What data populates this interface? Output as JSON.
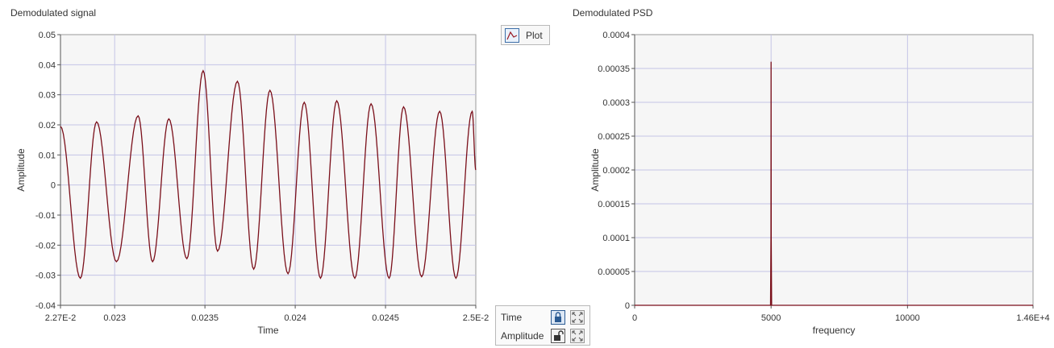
{
  "left_graph": {
    "title": "Demodulated signal",
    "chart_data": {
      "type": "line",
      "title": "Demodulated signal",
      "xlabel": "Time",
      "ylabel": "Amplitude",
      "xlim": [
        0.0227,
        0.025
      ],
      "ylim": [
        -0.04,
        0.05
      ],
      "x_ticks": [
        0.0227,
        0.023,
        0.0235,
        0.024,
        0.0245,
        0.025
      ],
      "x_tick_labels": [
        "2.27E-2",
        "0.023",
        "0.0235",
        "0.024",
        "0.0245",
        "2.5E-2"
      ],
      "y_ticks": [
        -0.04,
        -0.03,
        -0.02,
        -0.01,
        0,
        0.01,
        0.02,
        0.03,
        0.04,
        0.05
      ],
      "y_tick_labels": [
        "-0.04",
        "-0.03",
        "-0.02",
        "-0.01",
        "0",
        "0.01",
        "0.02",
        "0.03",
        "0.04",
        "0.05"
      ],
      "grid": true,
      "series_color": "#7a0f1a",
      "extrema": {
        "x": [
          0.0227,
          0.02281,
          0.0229,
          0.02301,
          0.02313,
          0.02321,
          0.0233,
          0.0234,
          0.02349,
          0.02357,
          0.02368,
          0.02377,
          0.02386,
          0.02396,
          0.02405,
          0.02414,
          0.02423,
          0.02433,
          0.02442,
          0.02452,
          0.0246,
          0.0247,
          0.0248,
          0.02489,
          0.02498,
          0.025
        ],
        "y": [
          0.0195,
          -0.031,
          0.021,
          -0.0255,
          0.023,
          -0.0255,
          0.022,
          -0.0245,
          0.038,
          -0.022,
          0.0345,
          -0.028,
          0.0315,
          -0.0295,
          0.0275,
          -0.031,
          0.028,
          -0.031,
          0.027,
          -0.031,
          0.026,
          -0.0305,
          0.0245,
          -0.031,
          0.0245,
          0.005
        ]
      }
    }
  },
  "right_graph": {
    "title": "Demodulated PSD",
    "chart_data": {
      "type": "line",
      "title": "Demodulated PSD",
      "xlabel": "frequency",
      "ylabel": "Amplitude",
      "xlim": [
        0,
        14600
      ],
      "ylim": [
        0,
        0.0004
      ],
      "x_ticks": [
        0,
        5000,
        10000,
        14600
      ],
      "x_tick_labels": [
        "0",
        "5000",
        "10000",
        "1.46E+4"
      ],
      "y_ticks": [
        0,
        5e-05,
        0.0001,
        0.00015,
        0.0002,
        0.00025,
        0.0003,
        0.00035,
        0.0004
      ],
      "y_tick_labels": [
        "0",
        "0.00005",
        "0.0001",
        "0.00015",
        "0.0002",
        "0.00025",
        "0.0003",
        "0.00035",
        "0.0004"
      ],
      "grid": true,
      "series_color": "#7a0f1a",
      "x": [
        0,
        4980,
        4995,
        5000,
        5005,
        5020,
        14600
      ],
      "y": [
        0,
        0,
        0.0001,
        0.00036,
        0.0001,
        0,
        0
      ]
    }
  },
  "legend": {
    "plot_label": "Plot"
  },
  "scale_legend": {
    "rows": [
      {
        "label": "Time",
        "lock_state": "locked"
      },
      {
        "label": "Amplitude",
        "lock_state": "unlocked"
      }
    ]
  }
}
